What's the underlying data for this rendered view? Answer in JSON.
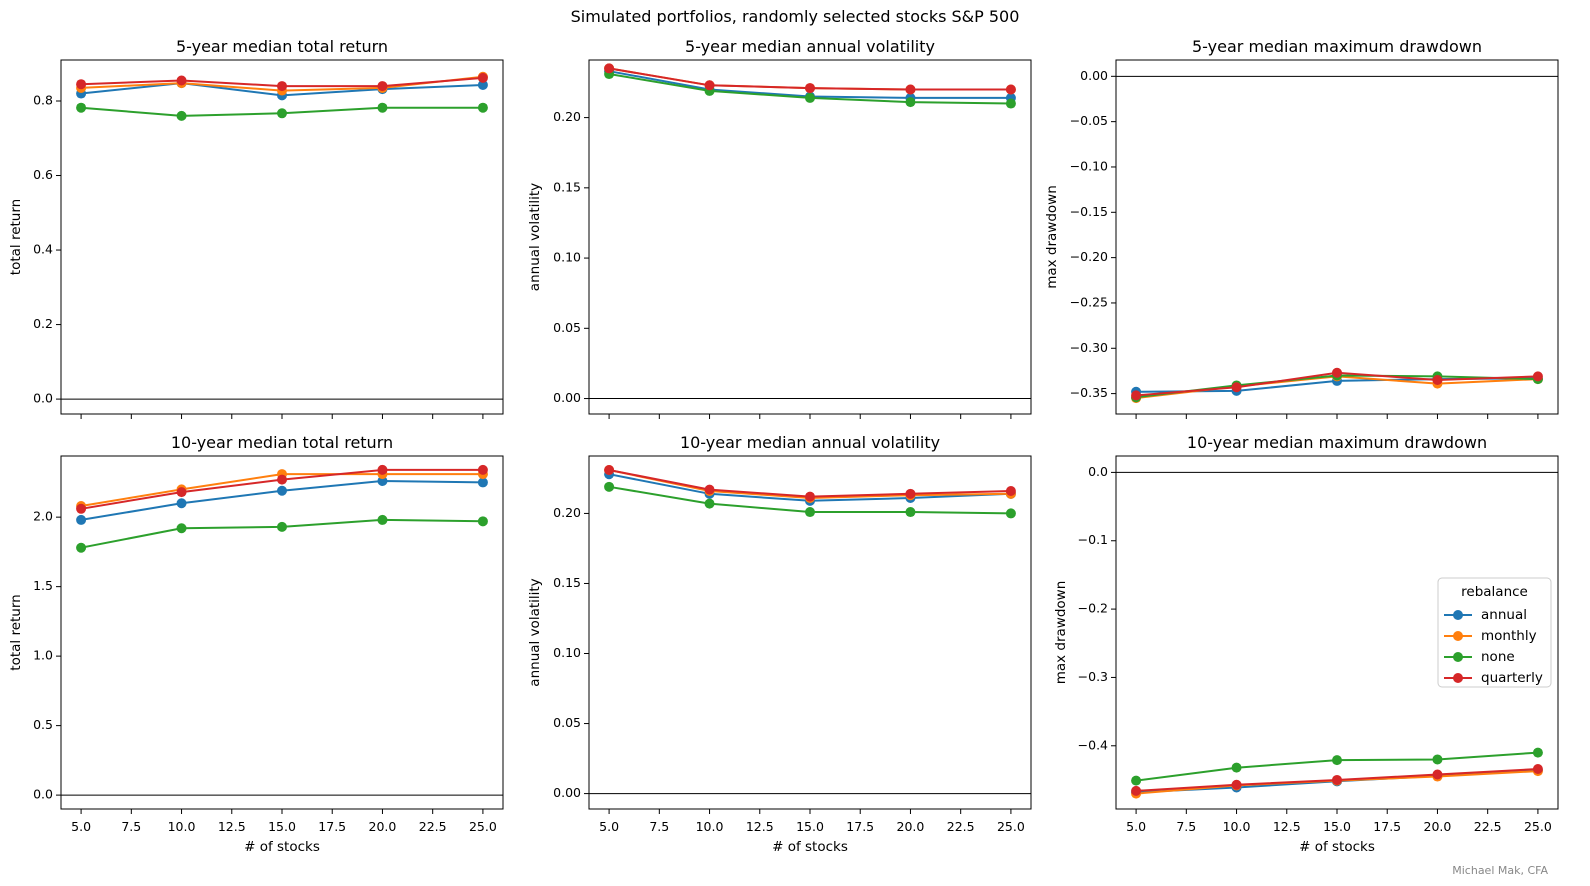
{
  "figure": {
    "title": "Simulated portfolios, randomly selected stocks S&P 500",
    "credit": "Michael Mak, CFA"
  },
  "colors": {
    "annual": "#1f77b4",
    "monthly": "#ff7f0e",
    "none": "#2ca02c",
    "quarterly": "#d62728"
  },
  "legend": {
    "title": "rebalance",
    "placement": "center-right",
    "entries": [
      "annual",
      "monthly",
      "none",
      "quarterly"
    ]
  },
  "chart_data": [
    {
      "type": "line",
      "title": "5-year median total return",
      "xlabel": "",
      "ylabel": "total return",
      "x": [
        5,
        10,
        15,
        20,
        25
      ],
      "xlim": [
        4,
        26
      ],
      "ylim": [
        -0.04,
        0.91
      ],
      "xticks": [
        5,
        7.5,
        10,
        12.5,
        15,
        17.5,
        20,
        22.5,
        25
      ],
      "xtick_labels": [],
      "yticks": [
        0,
        0.2,
        0.4,
        0.6,
        0.8
      ],
      "ytick_labels": [
        "0.0",
        "0.2",
        "0.4",
        "0.6",
        "0.8"
      ],
      "hline": 0,
      "series": [
        {
          "name": "annual",
          "values": [
            0.82,
            0.848,
            0.815,
            0.832,
            0.843
          ]
        },
        {
          "name": "monthly",
          "values": [
            0.835,
            0.848,
            0.828,
            0.835,
            0.865
          ]
        },
        {
          "name": "none",
          "values": [
            0.782,
            0.76,
            0.767,
            0.782,
            0.782
          ]
        },
        {
          "name": "quarterly",
          "values": [
            0.845,
            0.855,
            0.84,
            0.84,
            0.862
          ]
        }
      ]
    },
    {
      "type": "line",
      "title": "5-year median annual volatility",
      "xlabel": "",
      "ylabel": "annual volatility",
      "x": [
        5,
        10,
        15,
        20,
        25
      ],
      "xlim": [
        4,
        26
      ],
      "ylim": [
        -0.011,
        0.241
      ],
      "xticks": [
        5,
        7.5,
        10,
        12.5,
        15,
        17.5,
        20,
        22.5,
        25
      ],
      "xtick_labels": [],
      "yticks": [
        0,
        0.05,
        0.1,
        0.15,
        0.2
      ],
      "ytick_labels": [
        "0.00",
        "0.05",
        "0.10",
        "0.15",
        "0.20"
      ],
      "hline": 0,
      "series": [
        {
          "name": "annual",
          "values": [
            0.233,
            0.22,
            0.215,
            0.214,
            0.214
          ]
        },
        {
          "name": "monthly",
          "values": [
            0.235,
            0.223,
            0.221,
            0.22,
            0.22
          ]
        },
        {
          "name": "none",
          "values": [
            0.231,
            0.219,
            0.214,
            0.211,
            0.21
          ]
        },
        {
          "name": "quarterly",
          "values": [
            0.235,
            0.223,
            0.221,
            0.22,
            0.22
          ]
        }
      ]
    },
    {
      "type": "line",
      "title": "5-year median maximum drawdown",
      "xlabel": "",
      "ylabel": "max drawdown",
      "x": [
        5,
        10,
        15,
        20,
        25
      ],
      "xlim": [
        4,
        26
      ],
      "ylim": [
        -0.3725,
        0.018
      ],
      "xticks": [
        5,
        7.5,
        10,
        12.5,
        15,
        17.5,
        20,
        22.5,
        25
      ],
      "xtick_labels": [],
      "yticks": [
        0,
        -0.05,
        -0.1,
        -0.15,
        -0.2,
        -0.25,
        -0.3,
        -0.35
      ],
      "ytick_labels": [
        "0.00",
        "−0.05",
        "−0.10",
        "−0.15",
        "−0.20",
        "−0.25",
        "−0.30",
        "−0.35"
      ],
      "hline": 0,
      "series": [
        {
          "name": "annual",
          "values": [
            -0.348,
            -0.347,
            -0.336,
            -0.334,
            -0.333
          ]
        },
        {
          "name": "monthly",
          "values": [
            -0.355,
            -0.342,
            -0.331,
            -0.339,
            -0.334
          ]
        },
        {
          "name": "none",
          "values": [
            -0.354,
            -0.341,
            -0.33,
            -0.331,
            -0.334
          ]
        },
        {
          "name": "quarterly",
          "values": [
            -0.352,
            -0.343,
            -0.327,
            -0.335,
            -0.331
          ]
        }
      ]
    },
    {
      "type": "line",
      "title": "10-year median total return",
      "xlabel": "# of stocks",
      "ylabel": "total return",
      "x": [
        5,
        10,
        15,
        20,
        25
      ],
      "xlim": [
        4,
        26
      ],
      "ylim": [
        -0.1,
        2.44
      ],
      "xticks": [
        5,
        7.5,
        10,
        12.5,
        15,
        17.5,
        20,
        22.5,
        25
      ],
      "xtick_labels": [
        "5.0",
        "7.5",
        "10.0",
        "12.5",
        "15.0",
        "17.5",
        "20.0",
        "22.5",
        "25.0"
      ],
      "yticks": [
        0,
        0.5,
        1,
        1.5,
        2
      ],
      "ytick_labels": [
        "0.0",
        "0.5",
        "1.0",
        "1.5",
        "2.0"
      ],
      "hline": 0,
      "series": [
        {
          "name": "annual",
          "values": [
            1.98,
            2.1,
            2.19,
            2.26,
            2.25
          ]
        },
        {
          "name": "monthly",
          "values": [
            2.08,
            2.2,
            2.31,
            2.31,
            2.31
          ]
        },
        {
          "name": "none",
          "values": [
            1.78,
            1.92,
            1.93,
            1.98,
            1.97
          ]
        },
        {
          "name": "quarterly",
          "values": [
            2.06,
            2.18,
            2.27,
            2.34,
            2.34
          ]
        }
      ]
    },
    {
      "type": "line",
      "title": "10-year median annual volatility",
      "xlabel": "# of stocks",
      "ylabel": "annual volatility",
      "x": [
        5,
        10,
        15,
        20,
        25
      ],
      "xlim": [
        4,
        26
      ],
      "ylim": [
        -0.011,
        0.241
      ],
      "xticks": [
        5,
        7.5,
        10,
        12.5,
        15,
        17.5,
        20,
        22.5,
        25
      ],
      "xtick_labels": [
        "5.0",
        "7.5",
        "10.0",
        "12.5",
        "15.0",
        "17.5",
        "20.0",
        "22.5",
        "25.0"
      ],
      "yticks": [
        0,
        0.05,
        0.1,
        0.15,
        0.2
      ],
      "ytick_labels": [
        "0.00",
        "0.05",
        "0.10",
        "0.15",
        "0.20"
      ],
      "hline": 0,
      "series": [
        {
          "name": "annual",
          "values": [
            0.228,
            0.214,
            0.209,
            0.211,
            0.214
          ]
        },
        {
          "name": "monthly",
          "values": [
            0.231,
            0.216,
            0.211,
            0.213,
            0.214
          ]
        },
        {
          "name": "none",
          "values": [
            0.219,
            0.207,
            0.201,
            0.201,
            0.2
          ]
        },
        {
          "name": "quarterly",
          "values": [
            0.231,
            0.217,
            0.212,
            0.214,
            0.216
          ]
        }
      ]
    },
    {
      "type": "line",
      "title": "10-year median maximum drawdown",
      "xlabel": "# of stocks",
      "ylabel": "max drawdown",
      "x": [
        5,
        10,
        15,
        20,
        25
      ],
      "xlim": [
        4,
        26
      ],
      "ylim": [
        -0.4925,
        0.024
      ],
      "xticks": [
        5,
        7.5,
        10,
        12.5,
        15,
        17.5,
        20,
        22.5,
        25
      ],
      "xtick_labels": [
        "5.0",
        "7.5",
        "10.0",
        "12.5",
        "15.0",
        "17.5",
        "20.0",
        "22.5",
        "25.0"
      ],
      "yticks": [
        0,
        -0.1,
        -0.2,
        -0.3,
        -0.4
      ],
      "ytick_labels": [
        "0.0",
        "−0.1",
        "−0.2",
        "−0.3",
        "−0.4"
      ],
      "hline": 0,
      "series": [
        {
          "name": "annual",
          "values": [
            -0.468,
            -0.461,
            -0.452,
            -0.444,
            -0.436
          ]
        },
        {
          "name": "monthly",
          "values": [
            -0.47,
            -0.458,
            -0.451,
            -0.445,
            -0.437
          ]
        },
        {
          "name": "none",
          "values": [
            -0.451,
            -0.432,
            -0.421,
            -0.42,
            -0.41
          ]
        },
        {
          "name": "quarterly",
          "values": [
            -0.466,
            -0.457,
            -0.45,
            -0.442,
            -0.434
          ]
        }
      ]
    }
  ]
}
